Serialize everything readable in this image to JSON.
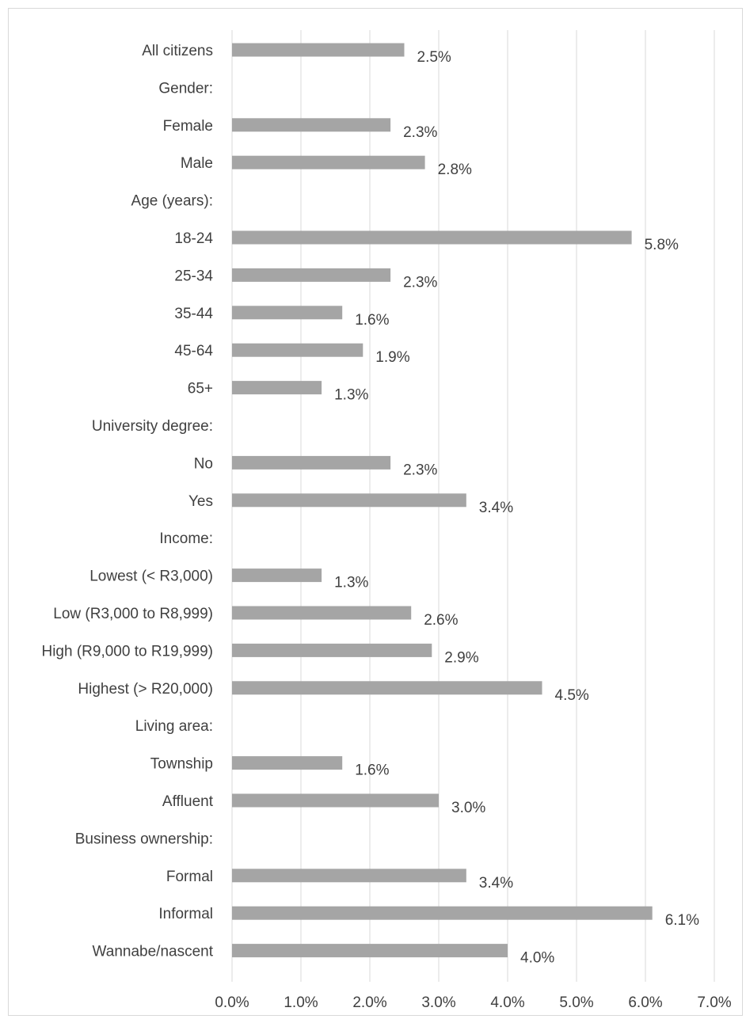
{
  "chart_data": {
    "type": "bar",
    "orientation": "horizontal",
    "categories": [
      "All citizens",
      "Gender:",
      "Female",
      "Male",
      "Age (years):",
      "18-24",
      "25-34",
      "35-44",
      "45-64",
      "65+",
      "University degree:",
      "No",
      "Yes",
      "Income:",
      "Lowest (< R3,000)",
      "Low (R3,000 to R8,999)",
      "High (R9,000 to R19,999)",
      "Highest (> R20,000)",
      "Living area:",
      "Township",
      "Affluent",
      "Business ownership:",
      "Formal",
      "Informal",
      "Wannabe/nascent"
    ],
    "values": [
      2.5,
      null,
      2.3,
      2.8,
      null,
      5.8,
      2.3,
      1.6,
      1.9,
      1.3,
      null,
      2.3,
      3.4,
      null,
      1.3,
      2.6,
      2.9,
      4.5,
      null,
      1.6,
      3.0,
      null,
      3.4,
      6.1,
      4.0
    ],
    "value_labels": [
      "2.5%",
      "",
      "2.3%",
      "2.8%",
      "",
      "5.8%",
      "2.3%",
      "1.6%",
      "1.9%",
      "1.3%",
      "",
      "2.3%",
      "3.4%",
      "",
      "1.3%",
      "2.6%",
      "2.9%",
      "4.5%",
      "",
      "1.6%",
      "3.0%",
      "",
      "3.4%",
      "6.1%",
      "4.0%"
    ],
    "xlim": [
      0,
      7
    ],
    "xticks": [
      0,
      1,
      2,
      3,
      4,
      5,
      6,
      7
    ],
    "xtick_labels": [
      "0.0%",
      "1.0%",
      "2.0%",
      "3.0%",
      "4.0%",
      "5.0%",
      "6.0%",
      "7.0%"
    ],
    "grid": "vertical",
    "bar_color": "#a5a5a5",
    "grid_color": "#d9d9d9",
    "text_color": "#404040",
    "title": "",
    "xlabel": "",
    "ylabel": ""
  }
}
